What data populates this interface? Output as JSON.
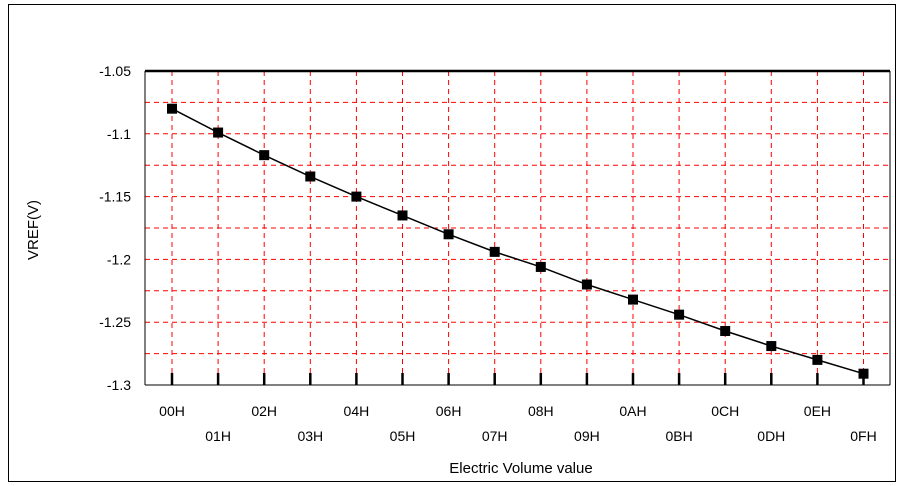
{
  "chart_data": {
    "type": "line",
    "xlabel": "Electric Volume value",
    "ylabel": "VREF(V)",
    "categories": [
      "00H",
      "01H",
      "02H",
      "03H",
      "04H",
      "05H",
      "06H",
      "07H",
      "08H",
      "09H",
      "0AH",
      "0BH",
      "0CH",
      "0DH",
      "0EH",
      "0FH"
    ],
    "series": [
      {
        "values": [
          -1.08,
          -1.099,
          -1.117,
          -1.134,
          -1.15,
          -1.165,
          -1.18,
          -1.194,
          -1.206,
          -1.22,
          -1.232,
          -1.244,
          -1.257,
          -1.269,
          -1.28,
          -1.291
        ]
      }
    ],
    "ylim": [
      -1.3,
      -1.05
    ],
    "yticks": [
      "-1.05",
      "-1.1",
      "-1.15",
      "-1.2",
      "-1.25",
      "-1.3"
    ],
    "grid": true,
    "colors": {
      "grid": "#ff0000",
      "line": "#000000",
      "marker": "#000000"
    }
  }
}
